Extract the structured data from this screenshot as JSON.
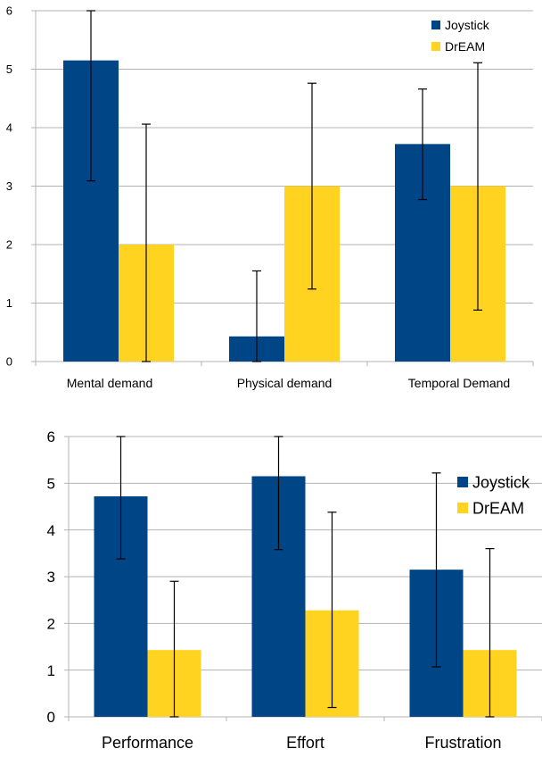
{
  "chart_data": [
    {
      "type": "bar",
      "categories": [
        "Mental demand",
        "Physical demand",
        "Temporal Demand"
      ],
      "series": [
        {
          "name": "Joystick",
          "color": "#004586",
          "values": [
            5.15,
            0.43,
            3.72
          ],
          "error_low": [
            3.09,
            0.0,
            2.77
          ],
          "error_high": [
            6.0,
            1.55,
            4.66
          ]
        },
        {
          "name": "DrEAM",
          "color": "#ffd320",
          "values": [
            2.0,
            3.0,
            3.0
          ],
          "error_low": [
            0.0,
            1.24,
            0.88
          ],
          "error_high": [
            4.06,
            4.76,
            5.11
          ]
        }
      ],
      "yticks": [
        "0",
        "1",
        "2",
        "3",
        "4",
        "5",
        "6"
      ],
      "ylim": [
        0,
        6
      ],
      "grid": true,
      "legend": "top-right",
      "title": "",
      "xlabel": "",
      "ylabel": ""
    },
    {
      "type": "bar",
      "categories": [
        "Performance",
        "Effort",
        "Frustration"
      ],
      "series": [
        {
          "name": "Joystick",
          "color": "#004586",
          "values": [
            4.72,
            5.15,
            3.15
          ],
          "error_low": [
            3.38,
            3.58,
            1.07
          ],
          "error_high": [
            6.0,
            6.0,
            5.22
          ]
        },
        {
          "name": "DrEAM",
          "color": "#ffd320",
          "values": [
            1.43,
            2.28,
            1.43
          ],
          "error_low": [
            0.0,
            0.2,
            0.0
          ],
          "error_high": [
            2.9,
            4.38,
            3.6
          ]
        }
      ],
      "yticks": [
        "0",
        "1",
        "2",
        "3",
        "4",
        "5",
        "6"
      ],
      "ylim": [
        0,
        6
      ],
      "grid": true,
      "legend": "top-right",
      "title": "",
      "xlabel": "",
      "ylabel": ""
    }
  ]
}
